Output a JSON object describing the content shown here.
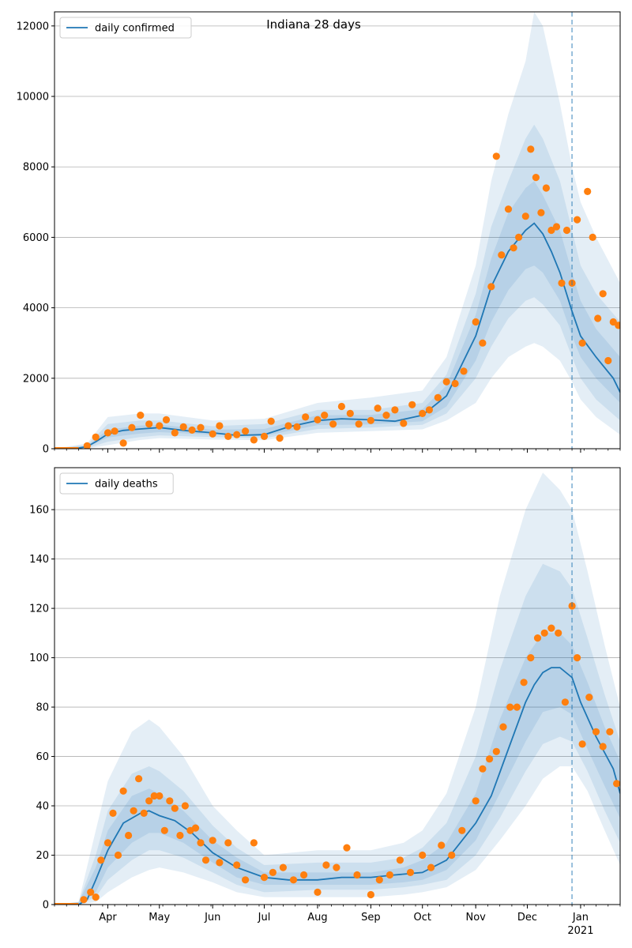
{
  "figure": {
    "title": "Indiana 28 days"
  },
  "colors": {
    "model": "#1f77b4",
    "observed": "#ff7f0e",
    "band": "#1f77b4",
    "grid": "#b0b0b0"
  },
  "chart_data": [
    {
      "type": "line",
      "legend": {
        "label": "daily confirmed",
        "placement": "top-left"
      },
      "x_range": [
        "2020-03-01",
        "2021-01-24"
      ],
      "ylim": [
        0,
        12400
      ],
      "yticks": [
        0,
        2000,
        4000,
        6000,
        8000,
        10000,
        12000
      ],
      "grid": "y",
      "forecast_start": "2020-12-27",
      "model": {
        "x": [
          "2020-03-01",
          "2020-03-10",
          "2020-03-15",
          "2020-03-20",
          "2020-03-25",
          "2020-04-01",
          "2020-04-10",
          "2020-04-20",
          "2020-05-01",
          "2020-05-15",
          "2020-06-01",
          "2020-06-15",
          "2020-07-01",
          "2020-07-15",
          "2020-08-01",
          "2020-08-15",
          "2020-09-01",
          "2020-09-15",
          "2020-10-01",
          "2020-10-15",
          "2020-11-01",
          "2020-11-10",
          "2020-11-20",
          "2020-11-30",
          "2020-12-05",
          "2020-12-10",
          "2020-12-15",
          "2020-12-20",
          "2020-12-27",
          "2021-01-01",
          "2021-01-10",
          "2021-01-20",
          "2021-01-24"
        ],
        "y": [
          0,
          10,
          20,
          60,
          200,
          420,
          520,
          560,
          600,
          520,
          450,
          380,
          400,
          620,
          800,
          850,
          820,
          780,
          950,
          1500,
          3200,
          4600,
          5600,
          6200,
          6400,
          6100,
          5600,
          5000,
          3900,
          3200,
          2600,
          2000,
          1600
        ]
      },
      "bands": [
        {
          "x": [
            "2020-03-01",
            "2020-03-20",
            "2020-04-01",
            "2020-04-20",
            "2020-05-01",
            "2020-06-01",
            "2020-07-01",
            "2020-08-01",
            "2020-09-01",
            "2020-10-01",
            "2020-10-15",
            "2020-11-01",
            "2020-11-10",
            "2020-11-20",
            "2020-11-30",
            "2020-12-05",
            "2020-12-10",
            "2020-12-20",
            "2020-12-27",
            "2021-01-01",
            "2021-01-10",
            "2021-01-24"
          ],
          "lower": [
            0,
            10,
            100,
            250,
            300,
            260,
            240,
            450,
            500,
            550,
            800,
            1300,
            2000,
            2600,
            2900,
            3000,
            2900,
            2500,
            1900,
            1400,
            900,
            400
          ],
          "upper": [
            0,
            150,
            900,
            1000,
            1000,
            800,
            850,
            1300,
            1450,
            1650,
            2600,
            5200,
            7600,
            9500,
            11000,
            12400,
            12000,
            9800,
            8000,
            7000,
            6000,
            4700
          ]
        },
        {
          "x": [
            "2020-03-01",
            "2020-03-20",
            "2020-04-01",
            "2020-04-20",
            "2020-05-01",
            "2020-06-01",
            "2020-07-01",
            "2020-08-01",
            "2020-09-01",
            "2020-10-01",
            "2020-10-15",
            "2020-11-01",
            "2020-11-10",
            "2020-11-20",
            "2020-11-30",
            "2020-12-05",
            "2020-12-10",
            "2020-12-20",
            "2020-12-27",
            "2021-01-01",
            "2021-01-10",
            "2021-01-24"
          ],
          "lower": [
            0,
            20,
            200,
            330,
            380,
            330,
            300,
            560,
            600,
            680,
            1000,
            2000,
            2900,
            3700,
            4200,
            4300,
            4100,
            3500,
            2600,
            2000,
            1400,
            800
          ],
          "upper": [
            0,
            110,
            700,
            800,
            800,
            640,
            700,
            1100,
            1100,
            1300,
            2100,
            4400,
            6300,
            7600,
            8800,
            9200,
            8800,
            7600,
            6200,
            5200,
            4400,
            3600
          ]
        },
        {
          "x": [
            "2020-03-01",
            "2020-03-20",
            "2020-04-01",
            "2020-04-20",
            "2020-05-01",
            "2020-06-01",
            "2020-07-01",
            "2020-08-01",
            "2020-09-01",
            "2020-10-01",
            "2020-10-15",
            "2020-11-01",
            "2020-11-10",
            "2020-11-20",
            "2020-11-30",
            "2020-12-05",
            "2020-12-10",
            "2020-12-20",
            "2020-12-27",
            "2021-01-01",
            "2021-01-10",
            "2021-01-24"
          ],
          "lower": [
            0,
            40,
            320,
            430,
            470,
            400,
            360,
            670,
            690,
            780,
            1200,
            2500,
            3600,
            4500,
            5100,
            5200,
            5000,
            4200,
            3200,
            2600,
            2000,
            1300
          ],
          "upper": [
            0,
            80,
            540,
            660,
            680,
            540,
            560,
            950,
            960,
            1120,
            1800,
            3800,
            5400,
            6700,
            7400,
            7600,
            7200,
            6200,
            5000,
            4200,
            3400,
            2600
          ]
        }
      ],
      "observed": {
        "x": [
          "2020-03-20",
          "2020-03-25",
          "2020-04-01",
          "2020-04-05",
          "2020-04-10",
          "2020-04-15",
          "2020-04-20",
          "2020-04-25",
          "2020-05-01",
          "2020-05-05",
          "2020-05-10",
          "2020-05-15",
          "2020-05-20",
          "2020-05-25",
          "2020-06-01",
          "2020-06-05",
          "2020-06-10",
          "2020-06-15",
          "2020-06-20",
          "2020-06-25",
          "2020-07-01",
          "2020-07-05",
          "2020-07-10",
          "2020-07-15",
          "2020-07-20",
          "2020-07-25",
          "2020-08-01",
          "2020-08-05",
          "2020-08-10",
          "2020-08-15",
          "2020-08-20",
          "2020-08-25",
          "2020-09-01",
          "2020-09-05",
          "2020-09-10",
          "2020-09-15",
          "2020-09-20",
          "2020-09-25",
          "2020-10-01",
          "2020-10-05",
          "2020-10-10",
          "2020-10-15",
          "2020-10-20",
          "2020-10-25",
          "2020-11-01",
          "2020-11-05",
          "2020-11-10",
          "2020-11-13",
          "2020-11-16",
          "2020-11-20",
          "2020-11-23",
          "2020-11-26",
          "2020-11-30",
          "2020-12-03",
          "2020-12-06",
          "2020-12-09",
          "2020-12-12",
          "2020-12-15",
          "2020-12-18",
          "2020-12-21",
          "2020-12-24",
          "2020-12-27",
          "2020-12-30",
          "2021-01-02",
          "2021-01-05",
          "2021-01-08",
          "2021-01-11",
          "2021-01-14",
          "2021-01-17",
          "2021-01-20",
          "2021-01-23"
        ],
        "y": [
          80,
          330,
          450,
          500,
          160,
          600,
          950,
          700,
          650,
          820,
          450,
          620,
          530,
          600,
          420,
          650,
          350,
          400,
          500,
          250,
          350,
          780,
          300,
          650,
          620,
          900,
          820,
          950,
          700,
          1200,
          1000,
          700,
          800,
          1150,
          950,
          1100,
          720,
          1250,
          1000,
          1100,
          1450,
          1900,
          1850,
          2200,
          3600,
          3000,
          4600,
          8300,
          5500,
          6800,
          5700,
          6000,
          6600,
          8500,
          7700,
          6700,
          7400,
          6200,
          6300,
          4700,
          6200,
          4700,
          6500,
          3000,
          7300,
          6000,
          3700,
          4400,
          2500,
          3600,
          3500
        ]
      }
    },
    {
      "type": "line",
      "legend": {
        "label": "daily deaths",
        "placement": "top-left"
      },
      "x_range": [
        "2020-03-01",
        "2021-01-24"
      ],
      "ylim": [
        0,
        177
      ],
      "yticks": [
        0,
        20,
        40,
        60,
        80,
        100,
        120,
        140,
        160
      ],
      "xtick_labels": [
        {
          "date": "2020-04-01",
          "label": "Apr"
        },
        {
          "date": "2020-05-01",
          "label": "May"
        },
        {
          "date": "2020-06-01",
          "label": "Jun"
        },
        {
          "date": "2020-07-01",
          "label": "Jul"
        },
        {
          "date": "2020-08-01",
          "label": "Aug"
        },
        {
          "date": "2020-09-01",
          "label": "Sep"
        },
        {
          "date": "2020-10-01",
          "label": "Oct"
        },
        {
          "date": "2020-11-01",
          "label": "Nov"
        },
        {
          "date": "2020-12-01",
          "label": "Dec"
        },
        {
          "date": "2021-01-01",
          "label": "Jan"
        }
      ],
      "year_label": {
        "date": "2021-01-01",
        "label": "2021"
      },
      "grid": "y",
      "forecast_start": "2020-12-27",
      "model": {
        "x": [
          "2020-03-01",
          "2020-03-15",
          "2020-03-20",
          "2020-03-25",
          "2020-04-01",
          "2020-04-10",
          "2020-04-20",
          "2020-04-25",
          "2020-05-01",
          "2020-05-10",
          "2020-05-20",
          "2020-06-01",
          "2020-06-15",
          "2020-07-01",
          "2020-07-15",
          "2020-08-01",
          "2020-08-15",
          "2020-09-01",
          "2020-09-15",
          "2020-10-01",
          "2020-10-15",
          "2020-11-01",
          "2020-11-10",
          "2020-11-20",
          "2020-11-30",
          "2020-12-05",
          "2020-12-10",
          "2020-12-15",
          "2020-12-20",
          "2020-12-27",
          "2021-01-01",
          "2021-01-10",
          "2021-01-20",
          "2021-01-24"
        ],
        "y": [
          0,
          0,
          2,
          10,
          22,
          33,
          37,
          38,
          36,
          34,
          29,
          21,
          15,
          11,
          10,
          10,
          11,
          11,
          12,
          13,
          18,
          33,
          44,
          63,
          82,
          89,
          94,
          96,
          96,
          92,
          82,
          68,
          55,
          45
        ]
      },
      "bands": [
        {
          "x": [
            "2020-03-01",
            "2020-03-15",
            "2020-03-25",
            "2020-04-01",
            "2020-04-15",
            "2020-04-25",
            "2020-05-01",
            "2020-05-15",
            "2020-06-01",
            "2020-06-15",
            "2020-07-01",
            "2020-08-01",
            "2020-09-01",
            "2020-09-20",
            "2020-10-01",
            "2020-10-15",
            "2020-11-01",
            "2020-11-15",
            "2020-11-30",
            "2020-12-10",
            "2020-12-20",
            "2020-12-27",
            "2021-01-05",
            "2021-01-15",
            "2021-01-24"
          ],
          "lower": [
            0,
            0,
            1,
            5,
            11,
            14,
            15,
            13,
            9,
            5,
            3,
            3,
            3,
            4,
            5,
            7,
            14,
            26,
            40,
            51,
            56,
            56,
            46,
            30,
            16
          ],
          "upper": [
            0,
            1,
            30,
            50,
            70,
            75,
            72,
            60,
            40,
            30,
            20,
            22,
            22,
            25,
            30,
            45,
            80,
            125,
            160,
            175,
            168,
            160,
            135,
            105,
            80
          ]
        },
        {
          "x": [
            "2020-03-01",
            "2020-03-15",
            "2020-03-25",
            "2020-04-01",
            "2020-04-15",
            "2020-04-25",
            "2020-05-01",
            "2020-05-15",
            "2020-06-01",
            "2020-06-15",
            "2020-07-01",
            "2020-08-01",
            "2020-09-01",
            "2020-09-20",
            "2020-10-01",
            "2020-10-15",
            "2020-11-01",
            "2020-11-15",
            "2020-11-30",
            "2020-12-10",
            "2020-12-20",
            "2020-12-27",
            "2021-01-05",
            "2021-01-15",
            "2021-01-24"
          ],
          "lower": [
            0,
            0,
            3,
            10,
            18,
            22,
            22,
            19,
            13,
            8,
            5,
            6,
            6,
            7,
            8,
            10,
            20,
            35,
            54,
            65,
            68,
            66,
            54,
            38,
            25
          ],
          "upper": [
            0,
            1,
            20,
            38,
            53,
            56,
            54,
            46,
            32,
            23,
            16,
            17,
            17,
            19,
            23,
            33,
            60,
            95,
            125,
            138,
            135,
            128,
            108,
            85,
            66
          ]
        },
        {
          "x": [
            "2020-03-01",
            "2020-03-15",
            "2020-03-25",
            "2020-04-01",
            "2020-04-15",
            "2020-04-25",
            "2020-05-01",
            "2020-05-15",
            "2020-06-01",
            "2020-06-15",
            "2020-07-01",
            "2020-08-01",
            "2020-09-01",
            "2020-09-20",
            "2020-10-01",
            "2020-10-15",
            "2020-11-01",
            "2020-11-15",
            "2020-11-30",
            "2020-12-10",
            "2020-12-20",
            "2020-12-27",
            "2021-01-05",
            "2021-01-15",
            "2021-01-24"
          ],
          "lower": [
            0,
            0,
            5,
            15,
            25,
            29,
            29,
            25,
            17,
            11,
            8,
            8,
            8,
            9,
            10,
            14,
            26,
            45,
            66,
            78,
            80,
            77,
            63,
            48,
            35
          ],
          "upper": [
            0,
            1,
            15,
            30,
            44,
            47,
            45,
            38,
            26,
            19,
            13,
            13,
            13,
            15,
            18,
            25,
            45,
            75,
            100,
            110,
            110,
            105,
            90,
            72,
            58
          ]
        }
      ],
      "observed": {
        "x": [
          "2020-03-18",
          "2020-03-22",
          "2020-03-25",
          "2020-03-28",
          "2020-04-01",
          "2020-04-04",
          "2020-04-07",
          "2020-04-10",
          "2020-04-13",
          "2020-04-16",
          "2020-04-19",
          "2020-04-22",
          "2020-04-25",
          "2020-04-28",
          "2020-05-01",
          "2020-05-04",
          "2020-05-07",
          "2020-05-10",
          "2020-05-13",
          "2020-05-16",
          "2020-05-19",
          "2020-05-22",
          "2020-05-25",
          "2020-05-28",
          "2020-06-01",
          "2020-06-05",
          "2020-06-10",
          "2020-06-15",
          "2020-06-20",
          "2020-06-25",
          "2020-07-01",
          "2020-07-06",
          "2020-07-12",
          "2020-07-18",
          "2020-07-24",
          "2020-08-01",
          "2020-08-06",
          "2020-08-12",
          "2020-08-18",
          "2020-08-24",
          "2020-09-01",
          "2020-09-06",
          "2020-09-12",
          "2020-09-18",
          "2020-09-24",
          "2020-10-01",
          "2020-10-06",
          "2020-10-12",
          "2020-10-18",
          "2020-10-24",
          "2020-11-01",
          "2020-11-05",
          "2020-11-09",
          "2020-11-13",
          "2020-11-17",
          "2020-11-21",
          "2020-11-25",
          "2020-11-29",
          "2020-12-03",
          "2020-12-07",
          "2020-12-11",
          "2020-12-15",
          "2020-12-19",
          "2020-12-23",
          "2020-12-27",
          "2020-12-30",
          "2021-01-02",
          "2021-01-06",
          "2021-01-10",
          "2021-01-14",
          "2021-01-18",
          "2021-01-22"
        ],
        "y": [
          2,
          5,
          3,
          18,
          25,
          37,
          20,
          46,
          28,
          38,
          51,
          37,
          42,
          44,
          44,
          30,
          42,
          39,
          28,
          40,
          30,
          31,
          25,
          18,
          26,
          17,
          25,
          16,
          10,
          25,
          11,
          13,
          15,
          10,
          12,
          5,
          16,
          15,
          23,
          12,
          4,
          10,
          12,
          18,
          13,
          20,
          15,
          24,
          20,
          30,
          42,
          55,
          59,
          62,
          72,
          80,
          80,
          90,
          100,
          108,
          110,
          112,
          110,
          82,
          121,
          100,
          65,
          84,
          70,
          64,
          70,
          49
        ]
      }
    }
  ]
}
